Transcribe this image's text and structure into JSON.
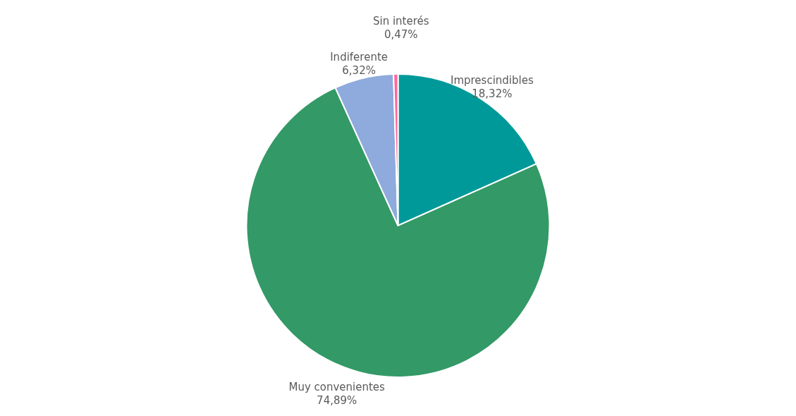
{
  "chart_data": {
    "type": "pie",
    "categories": [
      "Imprescindibles",
      "Muy convenientes",
      "Indiferente",
      "Sin interés"
    ],
    "values": [
      18.32,
      74.89,
      6.32,
      0.47
    ],
    "colors": [
      "#009999",
      "#339966",
      "#8faadc",
      "#ff6699"
    ],
    "value_labels": [
      "18,32%",
      "74,89%",
      "6,32%",
      "0,47%"
    ]
  }
}
